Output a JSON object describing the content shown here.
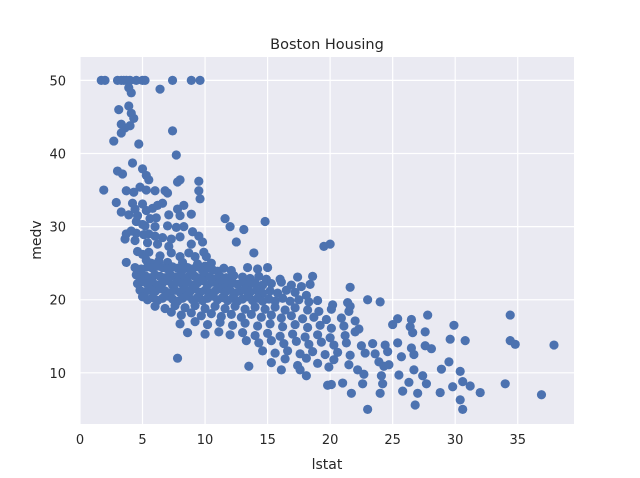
{
  "colors": {
    "background": "#eaeaf2",
    "grid": "#ffffff",
    "marker": "#4c72b0",
    "text": "#262626"
  },
  "chart_data": {
    "type": "scatter",
    "title": "Boston Housing",
    "xlabel": "lstat",
    "ylabel": "medv",
    "xlim": [
      0,
      39.5
    ],
    "ylim": [
      3,
      53.2
    ],
    "xticks": [
      0,
      5,
      10,
      15,
      20,
      25,
      30,
      35
    ],
    "yticks": [
      10,
      20,
      30,
      40,
      50
    ],
    "grid": true,
    "legend": "none",
    "points": [
      [
        1.7,
        50
      ],
      [
        2.0,
        50
      ],
      [
        3.0,
        50
      ],
      [
        3.3,
        50
      ],
      [
        3.7,
        50
      ],
      [
        4.0,
        50
      ],
      [
        4.5,
        50
      ],
      [
        5.0,
        50
      ],
      [
        5.2,
        50
      ],
      [
        7.4,
        50
      ],
      [
        8.9,
        50
      ],
      [
        9.6,
        50
      ],
      [
        3.5,
        50
      ],
      [
        3.9,
        49
      ],
      [
        4.1,
        48.3
      ],
      [
        6.4,
        48.8
      ],
      [
        3.1,
        46
      ],
      [
        3.9,
        46.5
      ],
      [
        4.1,
        45.5
      ],
      [
        4.3,
        44.8
      ],
      [
        3.3,
        44
      ],
      [
        3.6,
        43.5
      ],
      [
        4.0,
        43.8
      ],
      [
        3.3,
        42.8
      ],
      [
        2.7,
        41.7
      ],
      [
        4.7,
        41.3
      ],
      [
        7.4,
        43.1
      ],
      [
        7.7,
        39.8
      ],
      [
        1.9,
        35
      ],
      [
        3.0,
        37.6
      ],
      [
        3.4,
        37.2
      ],
      [
        4.2,
        38.7
      ],
      [
        5.0,
        37.9
      ],
      [
        5.3,
        37.0
      ],
      [
        5.5,
        36.4
      ],
      [
        8.0,
        36.4
      ],
      [
        9.5,
        36.2
      ],
      [
        7.8,
        36.1
      ],
      [
        3.7,
        34.9
      ],
      [
        4.3,
        34.7
      ],
      [
        4.8,
        35.4
      ],
      [
        5.3,
        35.0
      ],
      [
        6.0,
        34.9
      ],
      [
        6.8,
        34.9
      ],
      [
        7.0,
        34.6
      ],
      [
        9.5,
        34.9
      ],
      [
        9.6,
        33.8
      ],
      [
        2.9,
        33.3
      ],
      [
        3.3,
        32.0
      ],
      [
        4.2,
        33.2
      ],
      [
        4.4,
        32.4
      ],
      [
        5.0,
        33.1
      ],
      [
        5.3,
        32.2
      ],
      [
        5.8,
        32.5
      ],
      [
        6.2,
        32.9
      ],
      [
        6.6,
        33.2
      ],
      [
        7.8,
        32.4
      ],
      [
        8.3,
        32.9
      ],
      [
        3.9,
        31.6
      ],
      [
        4.6,
        31.5
      ],
      [
        5.6,
        31.1
      ],
      [
        6.1,
        31.2
      ],
      [
        7.1,
        31.6
      ],
      [
        8.0,
        31.5
      ],
      [
        8.9,
        31.7
      ],
      [
        11.6,
        31.1
      ],
      [
        14.8,
        30.7
      ],
      [
        4.5,
        30.7
      ],
      [
        5.0,
        30.3
      ],
      [
        5.2,
        30.1
      ],
      [
        6.0,
        30.0
      ],
      [
        7.0,
        30.1
      ],
      [
        7.7,
        29.9
      ],
      [
        8.3,
        30.0
      ],
      [
        9.0,
        29.3
      ],
      [
        12.0,
        30.0
      ],
      [
        13.1,
        29.6
      ],
      [
        3.7,
        29.0
      ],
      [
        4.1,
        29.4
      ],
      [
        4.5,
        29.1
      ],
      [
        5.1,
        28.9
      ],
      [
        5.5,
        29.0
      ],
      [
        6.0,
        28.7
      ],
      [
        6.6,
        28.5
      ],
      [
        7.3,
        28.3
      ],
      [
        8.0,
        28.6
      ],
      [
        9.5,
        28.7
      ],
      [
        3.6,
        28.3
      ],
      [
        4.4,
        28.1
      ],
      [
        5.4,
        27.8
      ],
      [
        6.2,
        27.6
      ],
      [
        7.1,
        27.3
      ],
      [
        8.9,
        27.6
      ],
      [
        9.8,
        27.9
      ],
      [
        12.5,
        27.9
      ],
      [
        19.5,
        27.3
      ],
      [
        20.0,
        27.6
      ],
      [
        4.6,
        26.6
      ],
      [
        5.0,
        26.2
      ],
      [
        5.5,
        26.5
      ],
      [
        6.4,
        26.0
      ],
      [
        7.3,
        26.4
      ],
      [
        8.0,
        25.9
      ],
      [
        8.7,
        26.4
      ],
      [
        9.2,
        25.9
      ],
      [
        9.9,
        26.5
      ],
      [
        10.1,
        25.9
      ],
      [
        13.9,
        26.4
      ],
      [
        3.7,
        25.1
      ],
      [
        5.3,
        25.4
      ],
      [
        5.7,
        25.0
      ],
      [
        6.3,
        25.3
      ],
      [
        7.0,
        25.1
      ],
      [
        8.2,
        25.1
      ],
      [
        9.4,
        24.9
      ],
      [
        10.0,
        24.6
      ],
      [
        10.5,
        25.0
      ],
      [
        4.4,
        24.4
      ],
      [
        4.9,
        24.2
      ],
      [
        5.4,
        24.5
      ],
      [
        5.8,
        24.3
      ],
      [
        6.2,
        24.6
      ],
      [
        6.6,
        24.4
      ],
      [
        7.0,
        24.2
      ],
      [
        7.4,
        24.5
      ],
      [
        7.8,
        24.3
      ],
      [
        8.2,
        24.1
      ],
      [
        8.6,
        24.4
      ],
      [
        9.0,
        24.2
      ],
      [
        9.4,
        24.5
      ],
      [
        9.8,
        24.0
      ],
      [
        10.2,
        24.3
      ],
      [
        10.6,
        24.1
      ],
      [
        11.0,
        23.9
      ],
      [
        11.5,
        24.3
      ],
      [
        12.1,
        24.0
      ],
      [
        13.4,
        24.4
      ],
      [
        14.2,
        24.2
      ],
      [
        15.0,
        24.4
      ],
      [
        4.5,
        23.4
      ],
      [
        4.8,
        23.1
      ],
      [
        5.2,
        23.3
      ],
      [
        5.6,
        23.0
      ],
      [
        6.0,
        23.4
      ],
      [
        6.4,
        23.2
      ],
      [
        6.8,
        23.0
      ],
      [
        7.2,
        23.5
      ],
      [
        7.6,
        23.1
      ],
      [
        8.0,
        23.3
      ],
      [
        8.4,
        23.0
      ],
      [
        8.8,
        23.4
      ],
      [
        9.2,
        23.2
      ],
      [
        9.6,
        22.9
      ],
      [
        10.0,
        23.3
      ],
      [
        10.4,
        23.1
      ],
      [
        10.8,
        22.8
      ],
      [
        11.2,
        23.2
      ],
      [
        11.7,
        23.0
      ],
      [
        12.3,
        23.3
      ],
      [
        13.0,
        23.1
      ],
      [
        13.6,
        22.9
      ],
      [
        14.3,
        23.2
      ],
      [
        14.9,
        22.8
      ],
      [
        16.0,
        22.8
      ],
      [
        17.4,
        23.1
      ],
      [
        18.6,
        23.2
      ],
      [
        4.6,
        22.2
      ],
      [
        5.0,
        22.5
      ],
      [
        5.4,
        22.1
      ],
      [
        5.8,
        22.4
      ],
      [
        6.2,
        22.0
      ],
      [
        6.6,
        22.3
      ],
      [
        7.0,
        22.6
      ],
      [
        7.4,
        22.0
      ],
      [
        7.8,
        22.4
      ],
      [
        8.2,
        22.1
      ],
      [
        8.6,
        22.5
      ],
      [
        9.0,
        22.0
      ],
      [
        9.4,
        22.3
      ],
      [
        9.8,
        22.6
      ],
      [
        10.2,
        22.0
      ],
      [
        10.6,
        22.4
      ],
      [
        11.0,
        22.1
      ],
      [
        11.4,
        22.5
      ],
      [
        11.8,
        22.0
      ],
      [
        12.2,
        22.3
      ],
      [
        12.6,
        22.1
      ],
      [
        13.0,
        22.4
      ],
      [
        13.5,
        22.0
      ],
      [
        14.0,
        22.3
      ],
      [
        14.6,
        22.0
      ],
      [
        15.3,
        22.2
      ],
      [
        16.1,
        22.4
      ],
      [
        16.9,
        22.0
      ],
      [
        17.7,
        21.8
      ],
      [
        18.4,
        22.1
      ],
      [
        21.6,
        21.7
      ],
      [
        4.8,
        21.3
      ],
      [
        5.2,
        21.0
      ],
      [
        5.6,
        21.4
      ],
      [
        6.0,
        21.1
      ],
      [
        6.4,
        21.5
      ],
      [
        6.8,
        21.2
      ],
      [
        7.2,
        20.9
      ],
      [
        7.6,
        21.3
      ],
      [
        8.0,
        21.0
      ],
      [
        8.4,
        21.4
      ],
      [
        8.8,
        21.1
      ],
      [
        9.2,
        21.5
      ],
      [
        9.6,
        21.0
      ],
      [
        10.0,
        21.3
      ],
      [
        10.4,
        20.9
      ],
      [
        10.8,
        21.2
      ],
      [
        11.2,
        21.5
      ],
      [
        11.6,
        21.0
      ],
      [
        12.0,
        21.3
      ],
      [
        12.4,
        20.9
      ],
      [
        12.8,
        21.2
      ],
      [
        13.2,
        21.4
      ],
      [
        13.6,
        21.0
      ],
      [
        14.1,
        21.3
      ],
      [
        14.6,
        20.9
      ],
      [
        15.2,
        21.2
      ],
      [
        15.8,
        20.9
      ],
      [
        16.5,
        21.3
      ],
      [
        17.2,
        21.0
      ],
      [
        18.1,
        20.6
      ],
      [
        5.0,
        20.4
      ],
      [
        5.4,
        20.0
      ],
      [
        5.8,
        20.3
      ],
      [
        6.2,
        19.9
      ],
      [
        6.6,
        20.2
      ],
      [
        7.0,
        20.5
      ],
      [
        7.4,
        20.1
      ],
      [
        7.8,
        19.8
      ],
      [
        8.2,
        20.2
      ],
      [
        8.6,
        20.5
      ],
      [
        9.0,
        20.0
      ],
      [
        9.4,
        20.3
      ],
      [
        9.8,
        19.9
      ],
      [
        10.2,
        20.2
      ],
      [
        10.6,
        20.5
      ],
      [
        11.0,
        20.0
      ],
      [
        11.4,
        20.3
      ],
      [
        11.8,
        19.9
      ],
      [
        12.2,
        20.2
      ],
      [
        12.6,
        19.8
      ],
      [
        13.0,
        20.1
      ],
      [
        13.4,
        20.4
      ],
      [
        13.8,
        19.9
      ],
      [
        14.2,
        20.2
      ],
      [
        14.6,
        19.8
      ],
      [
        15.1,
        20.1
      ],
      [
        15.6,
        19.8
      ],
      [
        16.2,
        20.2
      ],
      [
        16.8,
        19.8
      ],
      [
        17.5,
        20.0
      ],
      [
        18.3,
        19.7
      ],
      [
        19.0,
        19.9
      ],
      [
        20.2,
        19.3
      ],
      [
        21.4,
        19.6
      ],
      [
        21.6,
        19.1
      ],
      [
        23.0,
        20.0
      ],
      [
        24.0,
        19.7
      ],
      [
        6.0,
        19.1
      ],
      [
        6.8,
        18.8
      ],
      [
        7.6,
        19.2
      ],
      [
        8.4,
        18.9
      ],
      [
        9.2,
        19.2
      ],
      [
        10.0,
        18.8
      ],
      [
        10.8,
        19.1
      ],
      [
        11.6,
        18.8
      ],
      [
        12.4,
        19.1
      ],
      [
        13.2,
        18.7
      ],
      [
        14.0,
        19.0
      ],
      [
        14.8,
        18.7
      ],
      [
        15.6,
        19.0
      ],
      [
        16.4,
        18.6
      ],
      [
        17.2,
        18.9
      ],
      [
        18.2,
        18.6
      ],
      [
        19.1,
        18.4
      ],
      [
        20.1,
        18.7
      ],
      [
        21.5,
        18.4
      ],
      [
        7.3,
        18.3
      ],
      [
        8.1,
        17.9
      ],
      [
        8.9,
        18.2
      ],
      [
        9.7,
        17.8
      ],
      [
        10.5,
        18.1
      ],
      [
        11.3,
        17.7
      ],
      [
        12.1,
        18.0
      ],
      [
        12.9,
        17.6
      ],
      [
        13.7,
        18.0
      ],
      [
        14.5,
        17.6
      ],
      [
        15.3,
        17.9
      ],
      [
        16.1,
        17.5
      ],
      [
        16.9,
        17.8
      ],
      [
        17.8,
        17.4
      ],
      [
        18.7,
        17.6
      ],
      [
        19.7,
        17.3
      ],
      [
        20.9,
        17.5
      ],
      [
        22.0,
        17.1
      ],
      [
        25.4,
        17.4
      ],
      [
        26.5,
        17.3
      ],
      [
        27.8,
        17.9
      ],
      [
        34.4,
        17.9
      ],
      [
        8.0,
        16.7
      ],
      [
        9.2,
        17.0
      ],
      [
        10.2,
        16.6
      ],
      [
        11.2,
        16.9
      ],
      [
        12.2,
        16.5
      ],
      [
        13.2,
        16.8
      ],
      [
        14.2,
        16.4
      ],
      [
        15.2,
        16.7
      ],
      [
        16.2,
        16.3
      ],
      [
        17.2,
        16.6
      ],
      [
        18.2,
        16.2
      ],
      [
        19.2,
        16.5
      ],
      [
        20.1,
        16.1
      ],
      [
        21.1,
        16.4
      ],
      [
        22.3,
        16.0
      ],
      [
        25.0,
        16.6
      ],
      [
        26.4,
        16.3
      ],
      [
        29.9,
        16.5
      ],
      [
        8.6,
        15.5
      ],
      [
        10.0,
        15.3
      ],
      [
        11.1,
        15.6
      ],
      [
        12.0,
        15.2
      ],
      [
        13.0,
        15.5
      ],
      [
        14.0,
        15.1
      ],
      [
        15.0,
        15.4
      ],
      [
        16.0,
        15.0
      ],
      [
        17.0,
        15.3
      ],
      [
        18.0,
        14.9
      ],
      [
        19.0,
        15.2
      ],
      [
        20.0,
        14.8
      ],
      [
        21.2,
        15.1
      ],
      [
        22.0,
        15.6
      ],
      [
        26.6,
        15.5
      ],
      [
        27.6,
        15.6
      ],
      [
        29.6,
        14.6
      ],
      [
        30.8,
        14.4
      ],
      [
        13.3,
        14.4
      ],
      [
        14.3,
        14.1
      ],
      [
        15.3,
        14.4
      ],
      [
        16.3,
        14.0
      ],
      [
        17.3,
        14.3
      ],
      [
        18.3,
        13.9
      ],
      [
        19.3,
        14.2
      ],
      [
        20.3,
        13.8
      ],
      [
        21.3,
        14.1
      ],
      [
        22.5,
        13.7
      ],
      [
        23.4,
        14.0
      ],
      [
        24.4,
        13.8
      ],
      [
        25.4,
        14.1
      ],
      [
        26.5,
        13.4
      ],
      [
        27.6,
        13.7
      ],
      [
        28.1,
        13.3
      ],
      [
        34.4,
        14.4
      ],
      [
        34.8,
        13.9
      ],
      [
        37.9,
        13.8
      ],
      [
        14.6,
        13.0
      ],
      [
        15.6,
        12.7
      ],
      [
        16.6,
        13.0
      ],
      [
        17.6,
        12.6
      ],
      [
        18.6,
        12.9
      ],
      [
        19.6,
        12.5
      ],
      [
        20.6,
        12.8
      ],
      [
        21.6,
        12.4
      ],
      [
        22.8,
        12.7
      ],
      [
        23.6,
        12.6
      ],
      [
        24.6,
        12.9
      ],
      [
        25.7,
        12.2
      ],
      [
        26.7,
        12.5
      ],
      [
        16.4,
        11.9
      ],
      [
        18.1,
        12.0
      ],
      [
        20.3,
        11.8
      ],
      [
        23.9,
        11.5
      ],
      [
        7.8,
        12.0
      ],
      [
        15.3,
        11.4
      ],
      [
        17.4,
        11.0
      ],
      [
        19.0,
        11.3
      ],
      [
        21.5,
        11.1
      ],
      [
        24.7,
        11.1
      ],
      [
        29.5,
        11.5
      ],
      [
        13.5,
        10.9
      ],
      [
        16.1,
        10.4
      ],
      [
        17.6,
        10.4
      ],
      [
        19.9,
        10.8
      ],
      [
        22.2,
        10.4
      ],
      [
        24.3,
        10.9
      ],
      [
        26.7,
        10.4
      ],
      [
        28.9,
        10.5
      ],
      [
        30.4,
        10.2
      ],
      [
        18.1,
        9.6
      ],
      [
        22.7,
        9.8
      ],
      [
        24.1,
        9.6
      ],
      [
        25.5,
        9.7
      ],
      [
        27.4,
        9.6
      ],
      [
        30.6,
        8.8
      ],
      [
        26.3,
        8.7
      ],
      [
        27.7,
        8.5
      ],
      [
        24.2,
        8.5
      ],
      [
        21.0,
        8.6
      ],
      [
        19.8,
        8.3
      ],
      [
        20.1,
        8.4
      ],
      [
        22.6,
        8.5
      ],
      [
        29.8,
        8.1
      ],
      [
        31.2,
        8.2
      ],
      [
        34.0,
        8.5
      ],
      [
        21.7,
        7.2
      ],
      [
        24.0,
        7.2
      ],
      [
        25.8,
        7.5
      ],
      [
        27.0,
        7.2
      ],
      [
        28.8,
        7.3
      ],
      [
        32.0,
        7.3
      ],
      [
        30.4,
        6.3
      ],
      [
        26.8,
        5.6
      ],
      [
        23.0,
        5.0
      ],
      [
        30.6,
        5.0
      ],
      [
        36.9,
        7.0
      ]
    ]
  }
}
